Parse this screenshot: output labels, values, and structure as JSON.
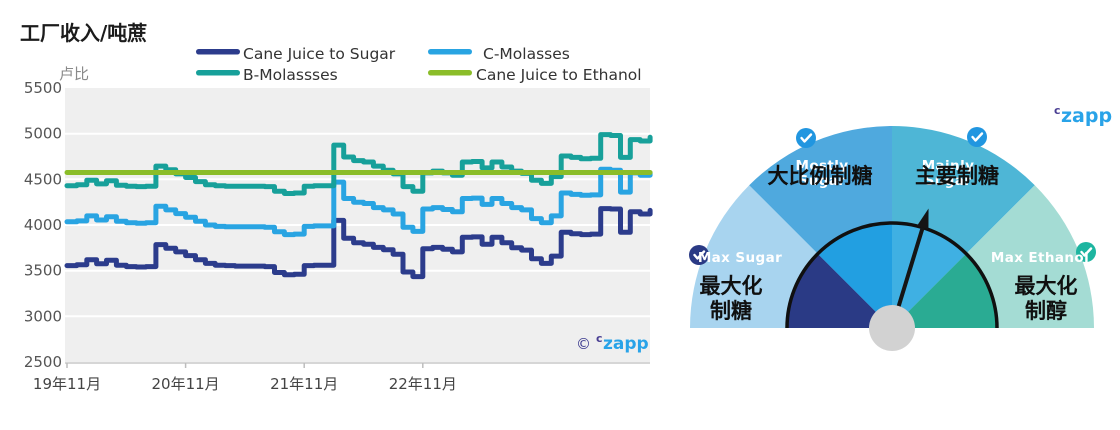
{
  "chart": {
    "title": "工厂收入/吨蔗",
    "y_axis_label": "卢比",
    "watermark": {
      "copyright": "©",
      "brand_c": "c",
      "brand": "zapp"
    },
    "legend": [
      {
        "label": "Cane Juice to Sugar",
        "color": "#2c3c8c"
      },
      {
        "label": "C-Molasses",
        "color": "#29a4e2"
      },
      {
        "label": "B-Molassses",
        "color": "#17a09a"
      },
      {
        "label": "Cane Juice to Ethanol",
        "color": "#8bbd29"
      }
    ],
    "y_ticks": [
      5500,
      5000,
      4500,
      4000,
      3500,
      3000,
      2500
    ],
    "x_ticks": [
      "19年11月",
      "20年11月",
      "21年11月",
      "22年11月"
    ]
  },
  "chart_data": {
    "type": "line",
    "title": "工厂收入/吨蔗",
    "ylabel": "卢比",
    "ylim": [
      2500,
      5500
    ],
    "grid": true,
    "legend_position": "top",
    "x_start": "2019-11",
    "x_interval": "month",
    "n_points": 60,
    "x_tick_positions_months": [
      0,
      12,
      24,
      36
    ],
    "x_tick_labels": [
      "19年11月",
      "20年11月",
      "21年11月",
      "22年11月"
    ],
    "series": [
      {
        "name": "Cane Juice to Sugar",
        "color": "#2c3c8c",
        "values": [
          3555,
          3565,
          3620,
          3575,
          3615,
          3560,
          3545,
          3540,
          3545,
          3785,
          3745,
          3705,
          3665,
          3620,
          3580,
          3560,
          3555,
          3550,
          3550,
          3550,
          3545,
          3480,
          3455,
          3460,
          3555,
          3560,
          3560,
          4050,
          3855,
          3805,
          3790,
          3755,
          3730,
          3680,
          3485,
          3435,
          3740,
          3755,
          3735,
          3705,
          3865,
          3870,
          3790,
          3865,
          3805,
          3750,
          3725,
          3630,
          3580,
          3660,
          3920,
          3905,
          3895,
          3900,
          4180,
          4175,
          3920,
          4145,
          4120,
          4160
        ]
      },
      {
        "name": "C-Molasses",
        "color": "#29a4e2",
        "values": [
          4035,
          4045,
          4100,
          4055,
          4090,
          4040,
          4025,
          4020,
          4025,
          4205,
          4165,
          4125,
          4085,
          4040,
          4000,
          3985,
          3980,
          3980,
          3980,
          3980,
          3975,
          3925,
          3895,
          3900,
          3985,
          3990,
          3990,
          4470,
          4290,
          4250,
          4235,
          4190,
          4165,
          4120,
          3975,
          3930,
          4175,
          4190,
          4170,
          4145,
          4290,
          4295,
          4225,
          4290,
          4235,
          4190,
          4165,
          4070,
          4025,
          4100,
          4350,
          4335,
          4325,
          4330,
          4610,
          4600,
          4360,
          4570,
          4545,
          4570
        ]
      },
      {
        "name": "B-Molassses",
        "color": "#17a09a",
        "values": [
          4430,
          4440,
          4490,
          4450,
          4485,
          4435,
          4425,
          4420,
          4425,
          4645,
          4605,
          4560,
          4520,
          4475,
          4440,
          4430,
          4425,
          4425,
          4425,
          4425,
          4420,
          4370,
          4345,
          4350,
          4425,
          4430,
          4430,
          4875,
          4745,
          4705,
          4690,
          4645,
          4600,
          4560,
          4420,
          4370,
          4570,
          4590,
          4570,
          4545,
          4690,
          4695,
          4625,
          4690,
          4635,
          4590,
          4565,
          4490,
          4455,
          4530,
          4755,
          4740,
          4725,
          4730,
          4990,
          4980,
          4740,
          4935,
          4920,
          4960
        ]
      },
      {
        "name": "Cane Juice to Ethanol",
        "color": "#8bbd29",
        "constant_value": 4575
      }
    ]
  },
  "gauge": {
    "brand_c": "c",
    "brand": "zapp",
    "needle_angle_deg_from_vertical": 17,
    "segments": [
      {
        "en": "Max Sugar",
        "en_line1": "Max Sugar",
        "en_line2": "",
        "zh": "最大化制糖",
        "zh_line1": "最大化",
        "zh_line2": "制糖",
        "outer_color": "#a8d4ef",
        "inner_color": "#2a3a85",
        "badge_color": "#2a3a85"
      },
      {
        "en": "Mostly Sugar",
        "en_line1": "Mostly",
        "en_line2": "Sugar",
        "zh": "大比例制糖",
        "zh_line1": "大比例制糖",
        "zh_line2": "",
        "outer_color": "#4fa9de",
        "inner_color": "#229fe1",
        "badge_color": "#2196e0"
      },
      {
        "en": "Mainly Sugar",
        "en_line1": "Mainly",
        "en_line2": "Sugar",
        "zh": "主要制糖",
        "zh_line1": "主要制糖",
        "zh_line2": "",
        "outer_color": "#4eb6d6",
        "inner_color": "#3fb0e3",
        "badge_color": "#2196e0"
      },
      {
        "en": "Max Ethanol",
        "en_line1": "Max Ethanol",
        "en_line2": "",
        "zh": "最大化制醇",
        "zh_line1": "最大化",
        "zh_line2": "制醇",
        "outer_color": "#a4dcd4",
        "inner_color": "#2aab93",
        "badge_color": "#1db5a0"
      }
    ]
  }
}
